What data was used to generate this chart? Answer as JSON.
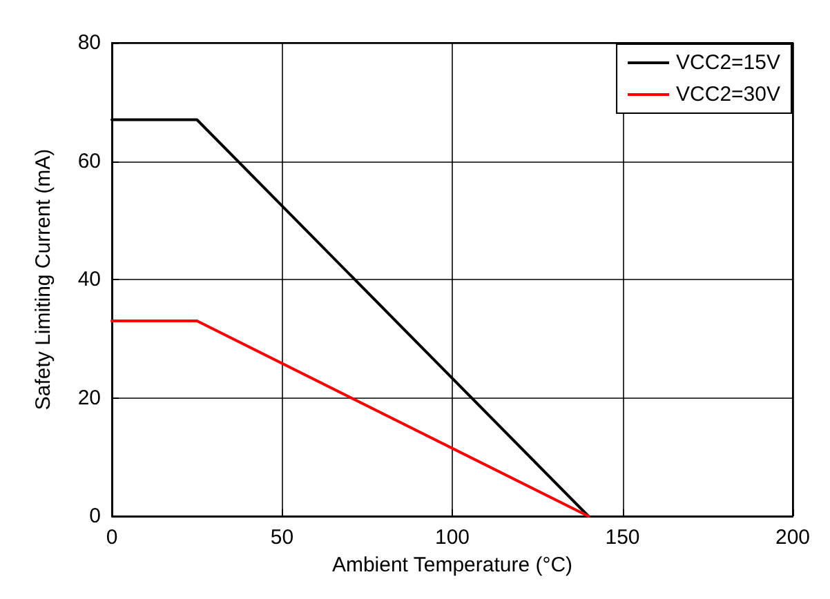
{
  "chart_data": {
    "type": "line",
    "xlabel": "Ambient Temperature (°C)",
    "ylabel": "Safety Limiting Current (mA)",
    "series": [
      {
        "name": "VCC2=15V",
        "color": "#000000",
        "x": [
          0,
          25,
          140
        ],
        "values": [
          67,
          67,
          0
        ]
      },
      {
        "name": "VCC2=30V",
        "color": "#ff0000",
        "x": [
          0,
          25,
          140
        ],
        "values": [
          33,
          33,
          0
        ]
      }
    ],
    "xlim": [
      0,
      200
    ],
    "xticks": [
      0,
      50,
      100,
      150,
      200
    ],
    "ylim": [
      0,
      80
    ],
    "yticks": [
      0,
      20,
      40,
      60,
      80
    ],
    "grid": true,
    "legend": "top right",
    "marker": "none",
    "line_style": "solid"
  }
}
